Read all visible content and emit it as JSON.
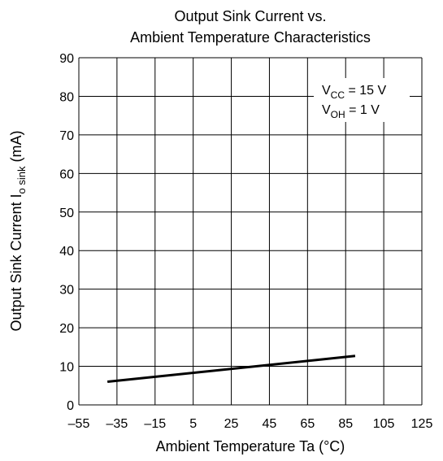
{
  "chart_data": {
    "type": "line",
    "title": [
      "Output Sink Current vs.",
      "Ambient Temperature Characteristics"
    ],
    "xlabel": "Ambient Temperature Ta (°C)",
    "ylabel": [
      "Output Sink Current I",
      "o sink",
      " (mA)"
    ],
    "annotation": [
      [
        "V",
        "CC",
        " = 15 V"
      ],
      [
        "V",
        "OH",
        " = 1 V"
      ]
    ],
    "x": [
      -40,
      90
    ],
    "series": [
      {
        "name": "Io sink",
        "color": "#000000",
        "values": [
          6,
          12.7
        ]
      }
    ],
    "xlim": [
      -55,
      125
    ],
    "xticks": [
      {
        "value": -55,
        "label": "–55"
      },
      {
        "value": -35,
        "label": "–35"
      },
      {
        "value": -15,
        "label": "–15"
      },
      5,
      25,
      45,
      65,
      85,
      105,
      125
    ],
    "ylim": [
      0,
      90
    ],
    "yticks": [
      0,
      10,
      20,
      30,
      40,
      50,
      60,
      70,
      80,
      90
    ],
    "grid": true
  }
}
